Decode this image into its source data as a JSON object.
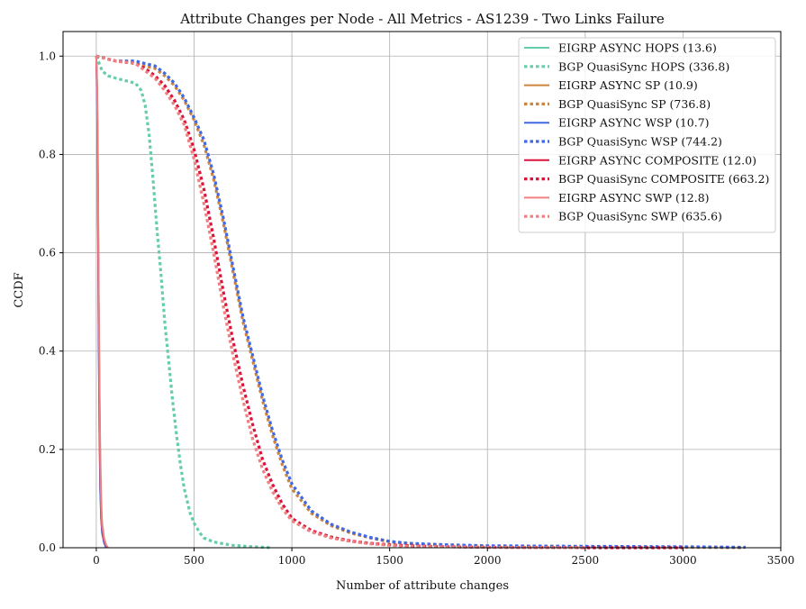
{
  "chart_data": {
    "type": "line",
    "title": "Attribute Changes per Node - All Metrics - AS1239 - Two Links Failure",
    "xlabel": "Number of attribute changes",
    "ylabel": "CCDF",
    "xlim": [
      -170,
      3500
    ],
    "ylim": [
      0,
      1.05
    ],
    "xticks": [
      0,
      500,
      1000,
      1500,
      2000,
      2500,
      3000,
      3500
    ],
    "xtick_labels": [
      "0",
      "500",
      "1000",
      "1500",
      "2000",
      "2500",
      "3000",
      "3500"
    ],
    "yticks": [
      0.0,
      0.2,
      0.4,
      0.6,
      0.8,
      1.0
    ],
    "ytick_labels": [
      "0.0",
      "0.2",
      "0.4",
      "0.6",
      "0.8",
      "1.0"
    ],
    "grid": true,
    "legend_position": "top-right",
    "series": [
      {
        "name": "EIGRP ASYNC HOPS (13.6)",
        "color": "#66cdaa",
        "dash": "solid",
        "x": [
          0,
          4,
          8,
          12,
          16,
          20,
          25,
          30,
          40,
          50,
          60
        ],
        "y": [
          1.0,
          0.95,
          0.8,
          0.55,
          0.35,
          0.2,
          0.1,
          0.05,
          0.02,
          0.005,
          0.0
        ]
      },
      {
        "name": "BGP QuasiSync HOPS (336.8)",
        "color": "#66cdaa",
        "dash": "dotted",
        "x": [
          0,
          10,
          30,
          60,
          100,
          150,
          200,
          230,
          250,
          270,
          290,
          310,
          330,
          350,
          370,
          390,
          410,
          430,
          450,
          480,
          500,
          530,
          550,
          600,
          650,
          700,
          800,
          900
        ],
        "y": [
          1.0,
          0.99,
          0.97,
          0.96,
          0.955,
          0.95,
          0.945,
          0.93,
          0.9,
          0.84,
          0.75,
          0.65,
          0.56,
          0.46,
          0.38,
          0.3,
          0.23,
          0.17,
          0.12,
          0.07,
          0.05,
          0.03,
          0.02,
          0.012,
          0.008,
          0.005,
          0.002,
          0.0
        ]
      },
      {
        "name": "EIGRP ASYNC SP (10.9)",
        "color": "#cd853f",
        "dash": "solid",
        "x": [
          0,
          4,
          8,
          12,
          16,
          20,
          25,
          30,
          40,
          50
        ],
        "y": [
          1.0,
          0.92,
          0.7,
          0.45,
          0.25,
          0.12,
          0.06,
          0.03,
          0.01,
          0.0
        ]
      },
      {
        "name": "BGP QuasiSync SP (736.8)",
        "color": "#cd853f",
        "dash": "dotted",
        "x": [
          0,
          50,
          100,
          200,
          250,
          300,
          350,
          400,
          450,
          500,
          550,
          600,
          650,
          700,
          750,
          800,
          850,
          900,
          950,
          1000,
          1100,
          1200,
          1300,
          1400,
          1500,
          1600,
          1800,
          2000,
          2500,
          3000,
          3300
        ],
        "y": [
          1.0,
          0.995,
          0.99,
          0.985,
          0.98,
          0.975,
          0.96,
          0.94,
          0.91,
          0.87,
          0.82,
          0.75,
          0.66,
          0.56,
          0.46,
          0.38,
          0.3,
          0.23,
          0.17,
          0.12,
          0.07,
          0.045,
          0.03,
          0.02,
          0.012,
          0.008,
          0.005,
          0.003,
          0.002,
          0.001,
          0.0
        ]
      },
      {
        "name": "EIGRP ASYNC WSP (10.7)",
        "color": "#4169e1",
        "dash": "solid",
        "x": [
          0,
          4,
          8,
          12,
          16,
          20,
          25,
          30,
          40,
          50
        ],
        "y": [
          1.0,
          0.9,
          0.68,
          0.44,
          0.24,
          0.12,
          0.06,
          0.03,
          0.01,
          0.0
        ]
      },
      {
        "name": "BGP QuasiSync WSP (744.2)",
        "color": "#4169e1",
        "dash": "dotted",
        "x": [
          0,
          50,
          100,
          200,
          250,
          300,
          350,
          400,
          450,
          500,
          550,
          600,
          650,
          700,
          750,
          800,
          850,
          900,
          950,
          1000,
          1100,
          1200,
          1300,
          1400,
          1500,
          1600,
          1800,
          2000,
          2500,
          3000,
          3320
        ],
        "y": [
          1.0,
          0.995,
          0.99,
          0.99,
          0.985,
          0.98,
          0.965,
          0.945,
          0.915,
          0.875,
          0.83,
          0.76,
          0.67,
          0.57,
          0.47,
          0.39,
          0.31,
          0.24,
          0.18,
          0.13,
          0.075,
          0.048,
          0.032,
          0.021,
          0.013,
          0.009,
          0.006,
          0.004,
          0.003,
          0.002,
          0.001
        ]
      },
      {
        "name": "EIGRP ASYNC COMPOSITE (12.0)",
        "color": "#dc143c",
        "dash": "solid",
        "x": [
          0,
          4,
          8,
          12,
          16,
          20,
          25,
          30,
          40,
          50,
          60
        ],
        "y": [
          1.0,
          0.93,
          0.74,
          0.5,
          0.3,
          0.16,
          0.08,
          0.04,
          0.015,
          0.005,
          0.0
        ]
      },
      {
        "name": "BGP QuasiSync COMPOSITE (663.2)",
        "color": "#dc143c",
        "dash": "dotted",
        "x": [
          0,
          50,
          100,
          200,
          250,
          300,
          350,
          400,
          450,
          500,
          550,
          600,
          650,
          700,
          750,
          800,
          850,
          900,
          950,
          1000,
          1100,
          1200,
          1300,
          1400,
          1500,
          1600,
          1800,
          2000,
          2500,
          3000
        ],
        "y": [
          1.0,
          0.995,
          0.99,
          0.985,
          0.975,
          0.96,
          0.94,
          0.91,
          0.87,
          0.81,
          0.73,
          0.63,
          0.52,
          0.42,
          0.33,
          0.25,
          0.18,
          0.13,
          0.09,
          0.06,
          0.035,
          0.022,
          0.014,
          0.009,
          0.006,
          0.004,
          0.002,
          0.001,
          0.0,
          0.0
        ]
      },
      {
        "name": "EIGRP ASYNC SWP (12.8)",
        "color": "#f08080",
        "dash": "solid",
        "x": [
          0,
          4,
          8,
          12,
          16,
          20,
          25,
          30,
          40,
          50,
          60
        ],
        "y": [
          1.0,
          0.94,
          0.77,
          0.53,
          0.33,
          0.18,
          0.09,
          0.045,
          0.018,
          0.006,
          0.0
        ]
      },
      {
        "name": "BGP QuasiSync SWP (635.6)",
        "color": "#f08080",
        "dash": "dotted",
        "x": [
          0,
          50,
          100,
          200,
          250,
          300,
          350,
          400,
          450,
          500,
          550,
          600,
          650,
          700,
          750,
          800,
          850,
          900,
          950,
          1000,
          1100,
          1200,
          1300,
          1400,
          1500,
          1600,
          1800,
          2000,
          2500
        ],
        "y": [
          1.0,
          0.995,
          0.99,
          0.985,
          0.97,
          0.955,
          0.93,
          0.9,
          0.86,
          0.79,
          0.7,
          0.6,
          0.49,
          0.39,
          0.3,
          0.22,
          0.16,
          0.115,
          0.08,
          0.055,
          0.032,
          0.02,
          0.013,
          0.008,
          0.005,
          0.003,
          0.002,
          0.001,
          0.0
        ]
      }
    ]
  }
}
